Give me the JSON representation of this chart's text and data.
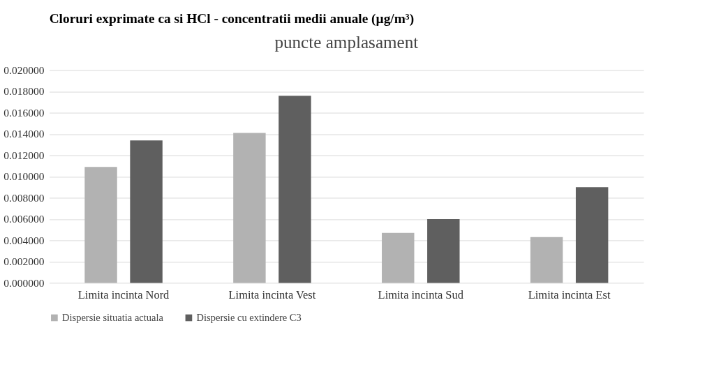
{
  "chart_data": {
    "type": "bar",
    "title": "puncte amplasament",
    "annotations": [
      "Cloruri exprimate ca si HCl - concentratii medii anuale (µg/m³)"
    ],
    "categories": [
      "Limita incinta Nord",
      "Limita incinta Vest",
      "Limita incinta Sud",
      "Limita incinta Est"
    ],
    "series": [
      {
        "name": "Dispersie situatia actuala",
        "color": "#b2b2b2",
        "values": [
          0.0109,
          0.0141,
          0.0047,
          0.0043
        ]
      },
      {
        "name": "Dispersie cu extindere C3",
        "color": "#5f5f5f",
        "values": [
          0.0134,
          0.0176,
          0.006,
          0.009
        ]
      }
    ],
    "ylim": [
      0,
      0.02
    ],
    "yticks": [
      {
        "value": 0,
        "label": "0.000000"
      },
      {
        "value": 0.002,
        "label": "0.002000"
      },
      {
        "value": 0.004,
        "label": "0.004000"
      },
      {
        "value": 0.006,
        "label": "0.006000"
      },
      {
        "value": 0.008,
        "label": "0.008000"
      },
      {
        "value": 0.01,
        "label": "0.010000"
      },
      {
        "value": 0.012,
        "label": "0.012000"
      },
      {
        "value": 0.014,
        "label": "0.014000"
      },
      {
        "value": 0.016,
        "label": "0.016000"
      },
      {
        "value": 0.018,
        "label": "0.018000"
      },
      {
        "value": 0.02,
        "label": "0.020000"
      }
    ],
    "grid": "y",
    "legend": "bottom"
  }
}
